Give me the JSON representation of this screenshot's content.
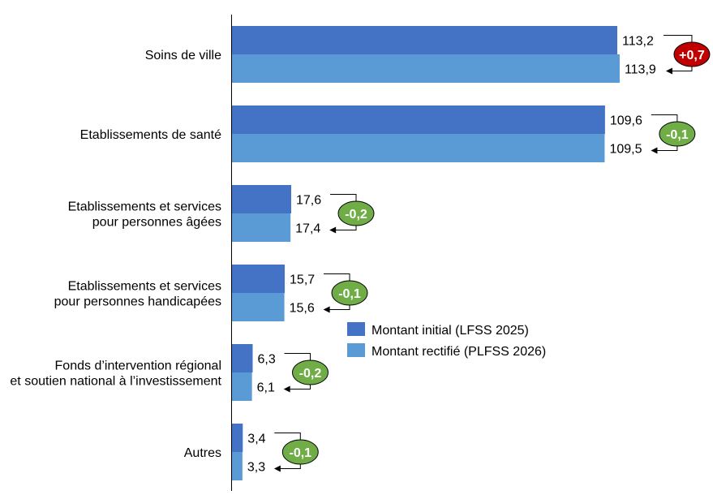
{
  "chart_data": {
    "type": "bar",
    "orientation": "horizontal",
    "categories": [
      [
        "Soins de ville"
      ],
      [
        "Etablissements de santé"
      ],
      [
        "Etablissements et services",
        "pour personnes âgées"
      ],
      [
        "Etablissements et services",
        "pour personnes handicapées"
      ],
      [
        "Fonds d’intervention régional",
        "et soutien national à l’investissement"
      ],
      [
        "Autres"
      ]
    ],
    "series": [
      {
        "name": "Montant initial (LFSS 2025)",
        "color": "#4472C4",
        "values": [
          113.2,
          109.6,
          17.6,
          15.7,
          6.3,
          3.4
        ],
        "labels": [
          "113,2",
          "109,6",
          "17,6",
          "15,7",
          "6,3",
          "3,4"
        ]
      },
      {
        "name": "Montant rectifié (PLFSS 2026)",
        "color": "#5B9BD5",
        "values": [
          113.9,
          109.5,
          17.4,
          15.6,
          6.1,
          3.3
        ],
        "labels": [
          "113,9",
          "109,5",
          "17,4",
          "15,6",
          "6,1",
          "3,3"
        ]
      }
    ],
    "deltas": [
      "+0,7",
      "-0,1",
      "-0,2",
      "-0,1",
      "-0,2",
      "-0,1"
    ],
    "delta_colors": {
      "positive": "#C00000",
      "negative": "#70AD47"
    },
    "xlim": [
      0,
      120
    ],
    "grid": false,
    "legend": "center-right"
  }
}
